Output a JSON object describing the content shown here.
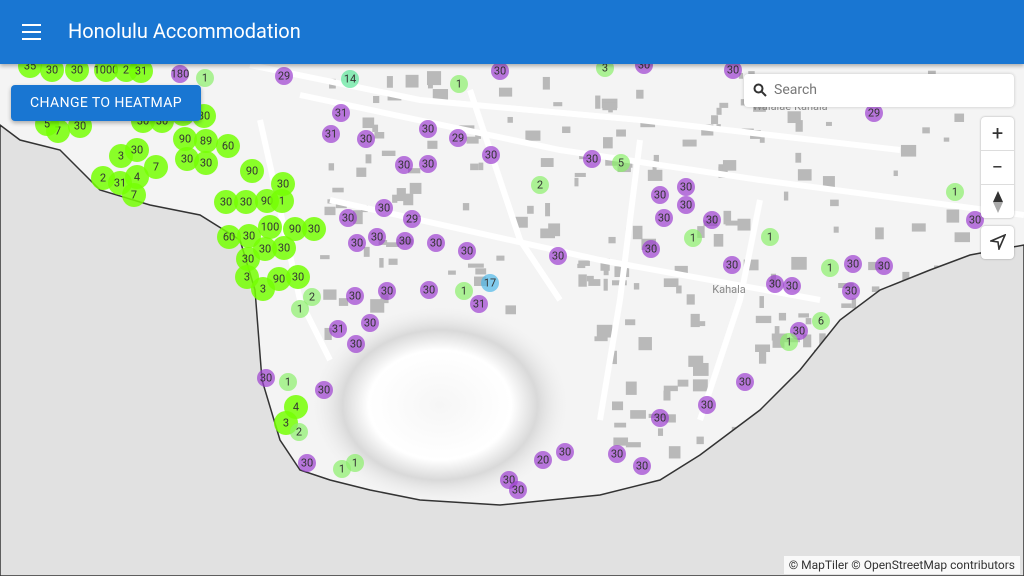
{
  "header": {
    "title": "Honolulu Accommodation"
  },
  "button": "CHANGE TO HEATMAP",
  "search_placeholder": "Search",
  "map_labels": [
    "Waialae-Kahala",
    "Kahala"
  ],
  "attribution": "© MapTiler © OpenStreetMap contributors",
  "markers": [
    {
      "label": "35",
      "color": "#76ff03"
    },
    {
      "label": "30",
      "color": "#76ff03"
    },
    {
      "label": "30",
      "color": "#76ff03"
    },
    {
      "label": "1000",
      "color": "#76ff03"
    },
    {
      "label": "2",
      "color": "#76ff03"
    },
    {
      "label": "31",
      "color": "#76ff03"
    },
    {
      "label": "3",
      "color": "#76ff03"
    },
    {
      "label": "30",
      "color": "#76ff03"
    },
    {
      "label": "2",
      "color": "#76ff03"
    },
    {
      "label": "31",
      "color": "#76ff03"
    },
    {
      "label": "4",
      "color": "#76ff03"
    },
    {
      "label": "7",
      "color": "#76ff03"
    },
    {
      "label": "7",
      "color": "#76ff03"
    },
    {
      "label": "90",
      "color": "#76ff03"
    },
    {
      "label": "89",
      "color": "#76ff03"
    },
    {
      "label": "30",
      "color": "#76ff03"
    },
    {
      "label": "30",
      "color": "#76ff03"
    },
    {
      "label": "60",
      "color": "#76ff03"
    },
    {
      "label": "90",
      "color": "#76ff03"
    },
    {
      "label": "30",
      "color": "#76ff03"
    },
    {
      "label": "30",
      "color": "#76ff03"
    },
    {
      "label": "30",
      "color": "#76ff03"
    },
    {
      "label": "90",
      "color": "#76ff03"
    },
    {
      "label": "1",
      "color": "#76ff03"
    },
    {
      "label": "100",
      "color": "#76ff03"
    },
    {
      "label": "90",
      "color": "#76ff03"
    },
    {
      "label": "30",
      "color": "#76ff03"
    },
    {
      "label": "60",
      "color": "#76ff03"
    },
    {
      "label": "30",
      "color": "#76ff03"
    },
    {
      "label": "30",
      "color": "#76ff03"
    },
    {
      "label": "30",
      "color": "#76ff03"
    },
    {
      "label": "30",
      "color": "#76ff03"
    },
    {
      "label": "90",
      "color": "#76ff03"
    },
    {
      "label": "30",
      "color": "#76ff03"
    },
    {
      "label": "3",
      "color": "#76ff03"
    },
    {
      "label": "3",
      "color": "#76ff03"
    },
    {
      "label": "30",
      "color": "#76ff03"
    },
    {
      "label": "30",
      "color": "#76ff03"
    },
    {
      "label": "30",
      "color": "#76ff03"
    },
    {
      "label": "30",
      "color": "#76ff03"
    },
    {
      "label": "7",
      "color": "#76ff03"
    },
    {
      "label": "30",
      "color": "#76ff03"
    },
    {
      "label": "5",
      "color": "#76ff03"
    },
    {
      "label": "180",
      "color": "#9c3fd0"
    },
    {
      "label": "1",
      "color": "#8bef6b"
    },
    {
      "label": "29",
      "color": "#9c3fd0"
    },
    {
      "label": "14",
      "color": "#5ce59a"
    },
    {
      "label": "1",
      "color": "#8bef6b"
    },
    {
      "label": "30",
      "color": "#9c3fd0"
    },
    {
      "label": "3",
      "color": "#8bef6b"
    },
    {
      "label": "30",
      "color": "#9c3fd0"
    },
    {
      "label": "30",
      "color": "#9c3fd0"
    },
    {
      "label": "31",
      "color": "#9c3fd0"
    },
    {
      "label": "31",
      "color": "#9c3fd0"
    },
    {
      "label": "30",
      "color": "#9c3fd0"
    },
    {
      "label": "30",
      "color": "#9c3fd0"
    },
    {
      "label": "29",
      "color": "#9c3fd0"
    },
    {
      "label": "30",
      "color": "#9c3fd0"
    },
    {
      "label": "30",
      "color": "#9c3fd0"
    },
    {
      "label": "30",
      "color": "#9c3fd0"
    },
    {
      "label": "30",
      "color": "#9c3fd0"
    },
    {
      "label": "5",
      "color": "#8bef6b"
    },
    {
      "label": "2",
      "color": "#8bef6b"
    },
    {
      "label": "30",
      "color": "#9c3fd0"
    },
    {
      "label": "30",
      "color": "#9c3fd0"
    },
    {
      "label": "30",
      "color": "#9c3fd0"
    },
    {
      "label": "30",
      "color": "#9c3fd0"
    },
    {
      "label": "30",
      "color": "#9c3fd0"
    },
    {
      "label": "30",
      "color": "#9c3fd0"
    },
    {
      "label": "1",
      "color": "#8bef6b"
    },
    {
      "label": "1",
      "color": "#8bef6b"
    },
    {
      "label": "29",
      "color": "#9c3fd0"
    },
    {
      "label": "1",
      "color": "#8bef6b"
    },
    {
      "label": "30",
      "color": "#9c3fd0"
    },
    {
      "label": "30",
      "color": "#9c3fd0"
    },
    {
      "label": "30",
      "color": "#9c3fd0"
    },
    {
      "label": "29",
      "color": "#9c3fd0"
    },
    {
      "label": "30",
      "color": "#9c3fd0"
    },
    {
      "label": "30",
      "color": "#9c3fd0"
    },
    {
      "label": "30",
      "color": "#9c3fd0"
    },
    {
      "label": "30",
      "color": "#9c3fd0"
    },
    {
      "label": "30",
      "color": "#9c3fd0"
    },
    {
      "label": "30",
      "color": "#9c3fd0"
    },
    {
      "label": "30",
      "color": "#9c3fd0"
    },
    {
      "label": "1",
      "color": "#8bef6b"
    },
    {
      "label": "30",
      "color": "#9c3fd0"
    },
    {
      "label": "30",
      "color": "#9c3fd0"
    },
    {
      "label": "30",
      "color": "#9c3fd0"
    },
    {
      "label": "30",
      "color": "#9c3fd0"
    },
    {
      "label": "30",
      "color": "#9c3fd0"
    },
    {
      "label": "17",
      "color": "#4fb8e8"
    },
    {
      "label": "1",
      "color": "#8bef6b"
    },
    {
      "label": "31",
      "color": "#9c3fd0"
    },
    {
      "label": "30",
      "color": "#9c3fd0"
    },
    {
      "label": "30",
      "color": "#9c3fd0"
    },
    {
      "label": "30",
      "color": "#9c3fd0"
    },
    {
      "label": "30",
      "color": "#9c3fd0"
    },
    {
      "label": "31",
      "color": "#9c3fd0"
    },
    {
      "label": "30",
      "color": "#9c3fd0"
    },
    {
      "label": "30",
      "color": "#9c3fd0"
    },
    {
      "label": "6",
      "color": "#8bef6b"
    },
    {
      "label": "1",
      "color": "#8bef6b"
    },
    {
      "label": "30",
      "color": "#9c3fd0"
    },
    {
      "label": "30",
      "color": "#9c3fd0"
    },
    {
      "label": "30",
      "color": "#9c3fd0"
    },
    {
      "label": "30",
      "color": "#9c3fd0"
    },
    {
      "label": "30",
      "color": "#9c3fd0"
    },
    {
      "label": "20",
      "color": "#9c3fd0"
    },
    {
      "label": "30",
      "color": "#9c3fd0"
    },
    {
      "label": "30",
      "color": "#9c3fd0"
    },
    {
      "label": "30",
      "color": "#9c3fd0"
    },
    {
      "label": "30",
      "color": "#9c3fd0"
    },
    {
      "label": "30",
      "color": "#9c3fd0"
    },
    {
      "label": "1",
      "color": "#8bef6b"
    },
    {
      "label": "4",
      "color": "#76ff03"
    },
    {
      "label": "3",
      "color": "#76ff03"
    },
    {
      "label": "2",
      "color": "#8bef6b"
    },
    {
      "label": "30",
      "color": "#9c3fd0"
    },
    {
      "label": "1",
      "color": "#8bef6b"
    },
    {
      "label": "1",
      "color": "#8bef6b"
    },
    {
      "label": "2",
      "color": "#8bef6b"
    },
    {
      "label": "1",
      "color": "#8bef6b"
    }
  ]
}
